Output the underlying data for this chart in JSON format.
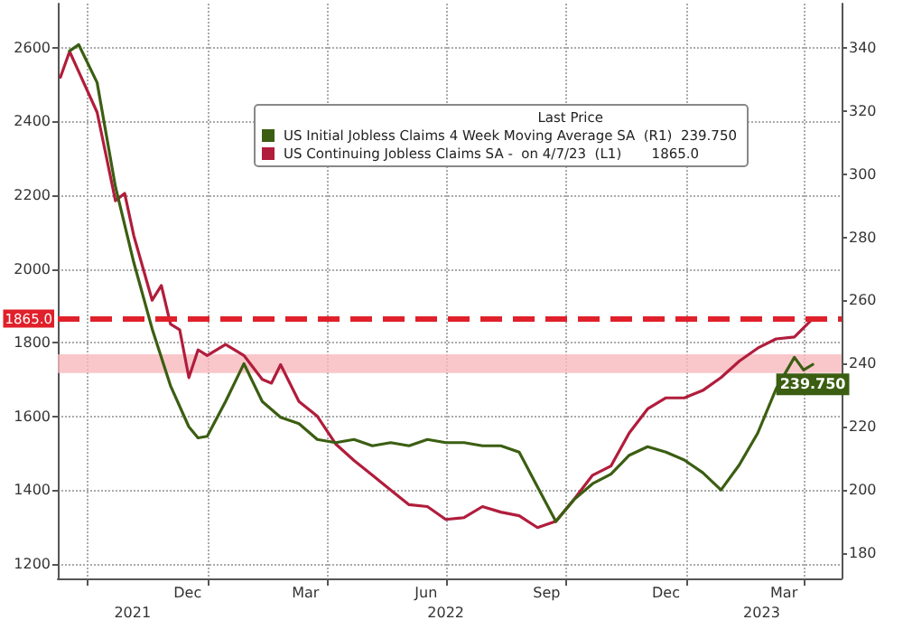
{
  "chart_data": {
    "type": "line",
    "legend_title": "Last Price",
    "xlim": [
      "2021-09-08",
      "2023-04-29"
    ],
    "xticks": [
      {
        "value": "2021-10-01",
        "label": null
      },
      {
        "value": "2021-12-16",
        "label": "Dec"
      },
      {
        "value": "2022-01-01",
        "label": null
      },
      {
        "value": "2022-03-16",
        "label": "Mar"
      },
      {
        "value": "2022-04-01",
        "label": null
      },
      {
        "value": "2022-06-16",
        "label": "Jun"
      },
      {
        "value": "2022-07-01",
        "label": null
      },
      {
        "value": "2022-09-16",
        "label": "Sep"
      },
      {
        "value": "2022-10-01",
        "label": null
      },
      {
        "value": "2022-12-16",
        "label": "Dec"
      },
      {
        "value": "2023-01-01",
        "label": null
      },
      {
        "value": "2023-03-16",
        "label": "Mar"
      },
      {
        "value": "2023-04-01",
        "label": null
      }
    ],
    "x2lim": [
      "2021-09-08",
      "2023-04-29"
    ],
    "x2ticks": [
      {
        "value": "2021-11-04",
        "label": "2021"
      },
      {
        "value": "2022-07-01",
        "label": "2022"
      },
      {
        "value": "2023-02-27",
        "label": "2023"
      }
    ],
    "ylim": [
      1160,
      2720
    ],
    "yticks": [
      1200,
      1400,
      1600,
      1800,
      2000,
      2200,
      2400,
      2600
    ],
    "y2lim": [
      172,
      354
    ],
    "y2ticks": [
      180,
      200,
      220,
      240,
      260,
      280,
      300,
      320,
      340
    ],
    "grid": true,
    "legend": "top right",
    "marker": "none",
    "line_style": "solid",
    "ref_lines": [
      {
        "axis": "y",
        "value": 1865,
        "label": "1865.0",
        "color": "#e0202a",
        "line_style": "dashed"
      }
    ],
    "bands": [
      {
        "axis": "y2",
        "from": 237,
        "to": 243,
        "color": "#f7b9bd"
      }
    ],
    "series": [
      {
        "name": "US Initial Jobless Claims 4 Week Moving Average SA  (R1)  239.750",
        "color": "#3b5e12",
        "axis": "y2",
        "x": [
          "2021-09-17",
          "2021-09-24",
          "2021-10-08",
          "2021-10-22",
          "2021-11-05",
          "2021-11-19",
          "2021-12-03",
          "2021-12-17",
          "2021-12-24",
          "2021-12-31",
          "2022-01-14",
          "2022-01-28",
          "2022-02-11",
          "2022-02-25",
          "2022-03-11",
          "2022-03-25",
          "2022-04-08",
          "2022-04-22",
          "2022-05-06",
          "2022-05-20",
          "2022-06-03",
          "2022-06-17",
          "2022-07-01",
          "2022-07-15",
          "2022-07-29",
          "2022-08-12",
          "2022-08-26",
          "2022-09-09",
          "2022-09-23",
          "2022-10-07",
          "2022-10-21",
          "2022-11-04",
          "2022-11-18",
          "2022-12-02",
          "2022-12-16",
          "2022-12-30",
          "2023-01-13",
          "2023-01-27",
          "2023-02-10",
          "2023-02-24",
          "2023-03-10",
          "2023-03-24",
          "2023-03-31",
          "2023-04-07"
        ],
        "values": [
          339,
          341,
          329,
          296,
          272,
          251,
          233,
          220,
          216.5,
          217,
          228,
          240,
          228,
          223,
          221,
          216,
          215,
          216,
          214,
          215,
          214,
          216,
          215,
          215,
          214,
          214,
          212,
          201,
          190,
          197,
          202,
          205,
          211,
          213.7,
          212,
          209.5,
          205.5,
          200,
          208,
          218,
          232,
          242,
          238,
          239.75
        ],
        "value_labels": [
          null,
          null,
          null,
          null,
          null,
          null,
          null,
          null,
          null,
          null,
          null,
          null,
          null,
          null,
          null,
          null,
          null,
          null,
          null,
          null,
          null,
          null,
          null,
          null,
          null,
          null,
          null,
          null,
          null,
          null,
          null,
          null,
          null,
          null,
          null,
          null,
          null,
          null,
          null,
          null,
          null,
          null,
          null,
          "239.750"
        ]
      },
      {
        "name": "US Continuing Jobless Claims SA -  on 4/7/23  (L1)       1865.0",
        "color": "#b11d3c",
        "axis": "y",
        "x": [
          "2021-09-10",
          "2021-09-17",
          "2021-09-24",
          "2021-10-08",
          "2021-10-22",
          "2021-10-29",
          "2021-11-05",
          "2021-11-19",
          "2021-11-26",
          "2021-12-03",
          "2021-12-10",
          "2021-12-17",
          "2021-12-24",
          "2021-12-31",
          "2022-01-14",
          "2022-01-28",
          "2022-02-11",
          "2022-02-18",
          "2022-02-25",
          "2022-03-11",
          "2022-03-25",
          "2022-04-08",
          "2022-04-22",
          "2022-05-06",
          "2022-05-20",
          "2022-06-03",
          "2022-06-17",
          "2022-07-01",
          "2022-07-15",
          "2022-07-29",
          "2022-08-12",
          "2022-08-26",
          "2022-09-09",
          "2022-09-23",
          "2022-10-07",
          "2022-10-21",
          "2022-11-04",
          "2022-11-18",
          "2022-12-02",
          "2022-12-16",
          "2022-12-30",
          "2023-01-13",
          "2023-01-27",
          "2023-02-10",
          "2023-02-24",
          "2023-03-10",
          "2023-03-24",
          "2023-04-07"
        ],
        "values": [
          2520,
          2590,
          2535,
          2425,
          2185,
          2205,
          2090,
          1915,
          1955,
          1850,
          1835,
          1705,
          1780,
          1765,
          1795,
          1765,
          1700,
          1690,
          1740,
          1640,
          1600,
          1525,
          1480,
          1440,
          1400,
          1360,
          1355,
          1320,
          1325,
          1355,
          1340,
          1330,
          1298,
          1315,
          1375,
          1440,
          1465,
          1555,
          1620,
          1650,
          1650,
          1670,
          1705,
          1750,
          1785,
          1810,
          1815,
          1865
        ]
      }
    ]
  }
}
